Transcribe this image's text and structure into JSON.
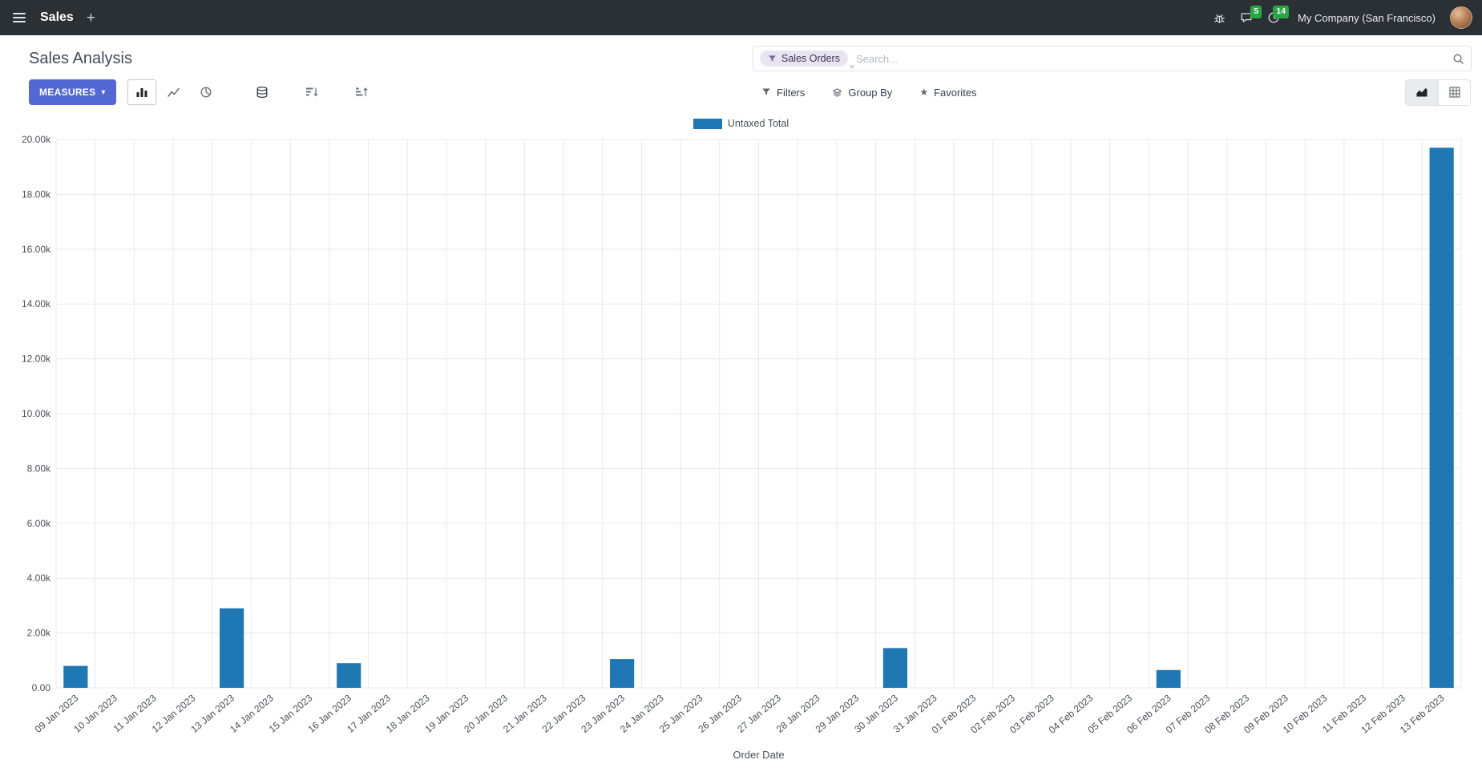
{
  "navbar": {
    "app_name": "Sales",
    "plus_icon": "+",
    "company": "My Company (San Francisco)",
    "badges": {
      "messages": "5",
      "activities": "14"
    }
  },
  "control_panel": {
    "title": "Sales Analysis",
    "search": {
      "facet": "Sales Orders",
      "facet_close": "×",
      "placeholder": "Search..."
    },
    "measures_label": "MEASURES",
    "buttons": {
      "filters": "Filters",
      "group_by": "Group By",
      "favorites": "Favorites"
    }
  },
  "icons": {
    "caret_down": "▾",
    "star": "★"
  },
  "colors": {
    "navbar_bg": "#2b3034",
    "accent": "#5468d4",
    "bar": "#1f77b4",
    "badge_green": "#28a745",
    "facet_bg": "#e8e4f2",
    "facet_icon": "#7d65a0",
    "border": "#dee2e6",
    "grid": "#e9e9ec",
    "text_dark": "#374151",
    "text_muted": "#6c757d"
  },
  "chart_data": {
    "type": "bar",
    "title": "",
    "xlabel": "Order Date",
    "ylabel": "",
    "ylim": [
      0,
      20000
    ],
    "ytick_step": 2000,
    "grid": true,
    "legend_position": "top",
    "categories": [
      "09 Jan 2023",
      "10 Jan 2023",
      "11 Jan 2023",
      "12 Jan 2023",
      "13 Jan 2023",
      "14 Jan 2023",
      "15 Jan 2023",
      "16 Jan 2023",
      "17 Jan 2023",
      "18 Jan 2023",
      "19 Jan 2023",
      "20 Jan 2023",
      "21 Jan 2023",
      "22 Jan 2023",
      "23 Jan 2023",
      "24 Jan 2023",
      "25 Jan 2023",
      "26 Jan 2023",
      "27 Jan 2023",
      "28 Jan 2023",
      "29 Jan 2023",
      "30 Jan 2023",
      "31 Jan 2023",
      "01 Feb 2023",
      "02 Feb 2023",
      "03 Feb 2023",
      "04 Feb 2023",
      "05 Feb 2023",
      "06 Feb 2023",
      "07 Feb 2023",
      "08 Feb 2023",
      "09 Feb 2023",
      "10 Feb 2023",
      "11 Feb 2023",
      "12 Feb 2023",
      "13 Feb 2023"
    ],
    "series": [
      {
        "name": "Untaxed Total",
        "values": [
          800,
          0,
          0,
          0,
          2900,
          0,
          0,
          900,
          0,
          0,
          0,
          0,
          0,
          0,
          1050,
          0,
          0,
          0,
          0,
          0,
          0,
          1450,
          0,
          0,
          0,
          0,
          0,
          0,
          650,
          0,
          0,
          0,
          0,
          0,
          0,
          19700
        ]
      }
    ]
  }
}
